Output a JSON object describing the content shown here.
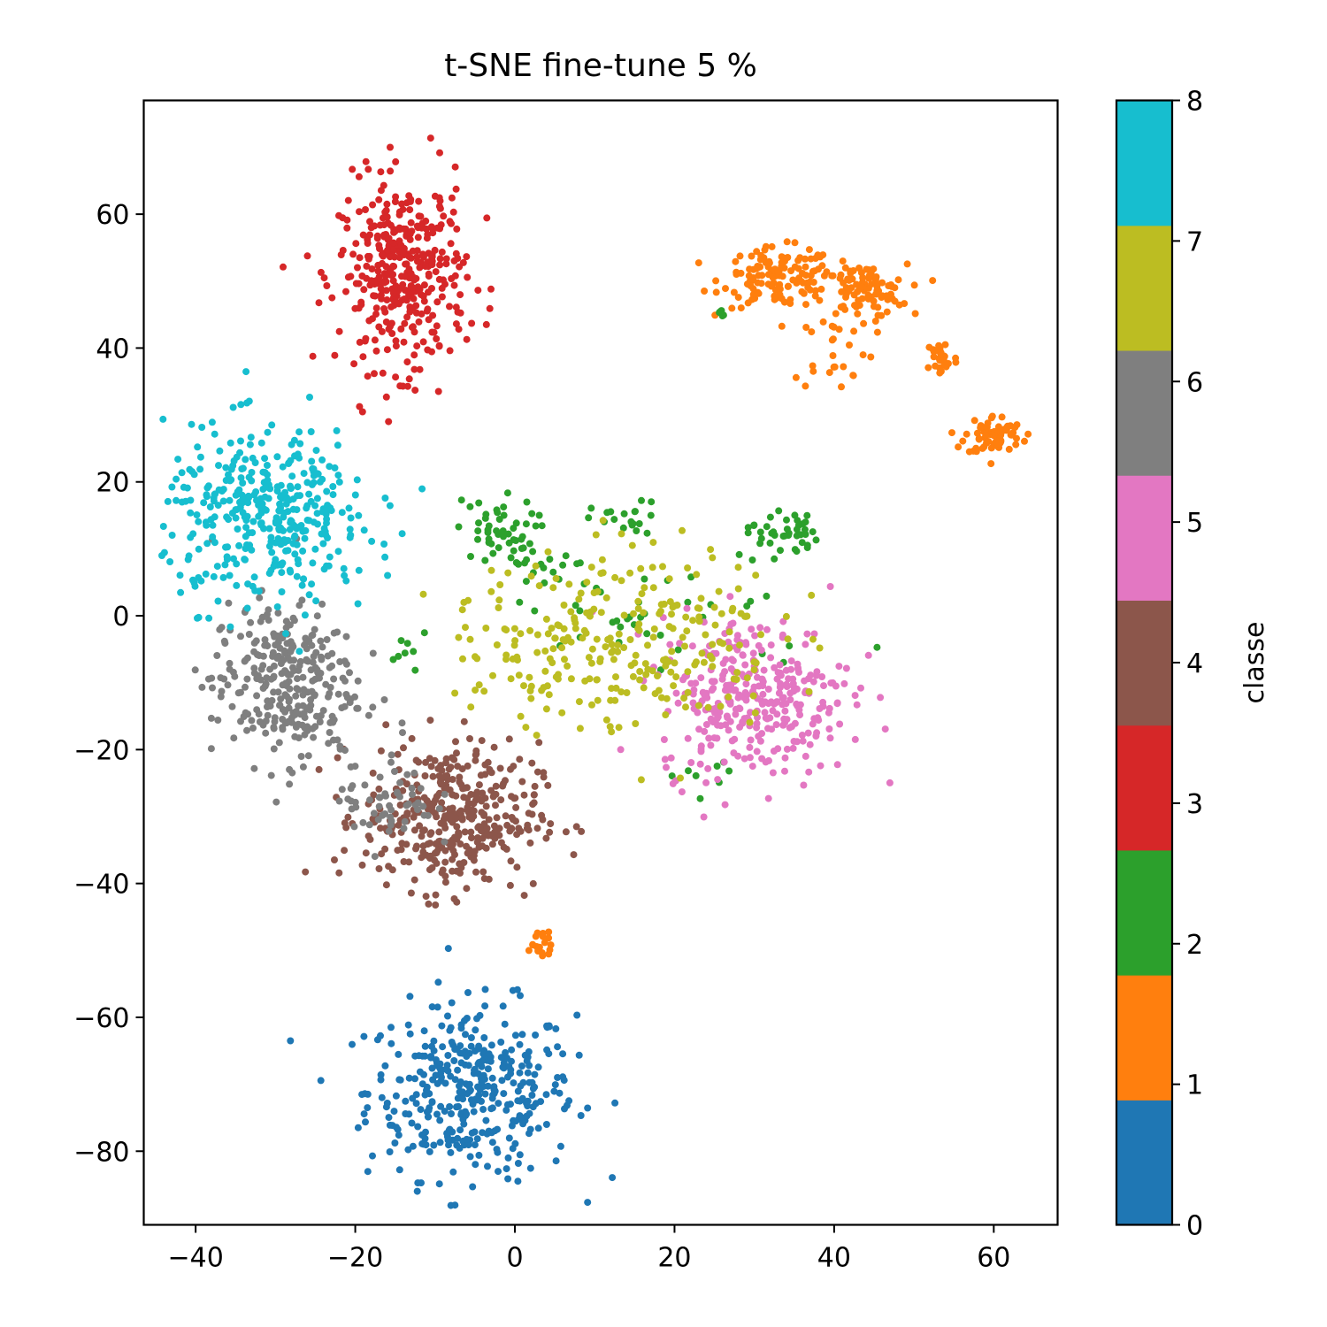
{
  "chart_data": {
    "type": "scatter",
    "title": "t-SNE fine-tune 5 %",
    "xlim": [
      -46.5,
      68.0
    ],
    "ylim": [
      -91.0,
      77.0
    ],
    "xticks": [
      -40,
      -20,
      0,
      20,
      40,
      60
    ],
    "yticks": [
      -80,
      -60,
      -40,
      -20,
      0,
      20,
      40,
      60
    ],
    "xtick_labels": [
      "−40",
      "−20",
      "0",
      "20",
      "40",
      "60"
    ],
    "ytick_labels": [
      "−80",
      "−60",
      "−40",
      "−20",
      "0",
      "20",
      "40",
      "60"
    ],
    "grid": false,
    "colorbar": {
      "label": "classe",
      "range": [
        0,
        8
      ],
      "ticks": [
        0,
        1,
        2,
        3,
        4,
        5,
        6,
        7,
        8
      ],
      "tick_labels": [
        "0",
        "1",
        "2",
        "3",
        "4",
        "5",
        "6",
        "7",
        "8"
      ],
      "colors": [
        "#1f77b4",
        "#ff7f0e",
        "#2ca02c",
        "#d62728",
        "#8c564b",
        "#e377c2",
        "#7f7f7f",
        "#bcbd22",
        "#17becf"
      ]
    },
    "clusters": [
      {
        "class": 0,
        "center": [
          -5.5,
          -71.0
        ],
        "spread": [
          6.5,
          6.5
        ],
        "n": 380
      },
      {
        "class": 1,
        "center": [
          33.0,
          50.5
        ],
        "spread": [
          3.5,
          2.2
        ],
        "n": 130
      },
      {
        "class": 1,
        "center": [
          43.5,
          48.5
        ],
        "spread": [
          2.8,
          2.0
        ],
        "n": 100
      },
      {
        "class": 1,
        "center": [
          53.5,
          38.5
        ],
        "spread": [
          1.0,
          1.5
        ],
        "n": 30
      },
      {
        "class": 1,
        "center": [
          60.0,
          27.0
        ],
        "spread": [
          1.8,
          1.5
        ],
        "n": 70
      },
      {
        "class": 1,
        "center": [
          40.0,
          40.0
        ],
        "spread": [
          2.5,
          3.0
        ],
        "n": 25
      },
      {
        "class": 1,
        "center": [
          3.0,
          -49.0
        ],
        "spread": [
          1.2,
          1.6
        ],
        "n": 18
      },
      {
        "class": 2,
        "center": [
          -2.5,
          12.5
        ],
        "spread": [
          2.5,
          2.5
        ],
        "n": 45
      },
      {
        "class": 2,
        "center": [
          33.5,
          12.5
        ],
        "spread": [
          2.2,
          1.8
        ],
        "n": 40
      },
      {
        "class": 2,
        "center": [
          14.0,
          14.0
        ],
        "spread": [
          2.2,
          1.5
        ],
        "n": 20
      },
      {
        "class": 2,
        "center": [
          3.0,
          8.0
        ],
        "spread": [
          3.0,
          2.0
        ],
        "n": 18
      },
      {
        "class": 2,
        "center": [
          18.0,
          0.0
        ],
        "spread": [
          12.0,
          5.0
        ],
        "n": 40
      },
      {
        "class": 2,
        "center": [
          -13.0,
          -5.0
        ],
        "spread": [
          1.0,
          1.2
        ],
        "n": 8
      },
      {
        "class": 2,
        "center": [
          25.5,
          45.2
        ],
        "spread": [
          0.3,
          0.3
        ],
        "n": 5
      },
      {
        "class": 2,
        "center": [
          25.0,
          -24.0
        ],
        "spread": [
          3.0,
          1.5
        ],
        "n": 8
      },
      {
        "class": 3,
        "center": [
          -14.0,
          51.0
        ],
        "spread": [
          4.0,
          7.0
        ],
        "n": 380
      },
      {
        "class": 4,
        "center": [
          -8.0,
          -30.0
        ],
        "spread": [
          5.5,
          5.5
        ],
        "n": 380
      },
      {
        "class": 5,
        "center": [
          30.0,
          -12.0
        ],
        "spread": [
          6.0,
          6.0
        ],
        "n": 330
      },
      {
        "class": 6,
        "center": [
          -29.0,
          -10.0
        ],
        "spread": [
          4.5,
          6.0
        ],
        "n": 300
      },
      {
        "class": 6,
        "center": [
          -16.0,
          -27.0
        ],
        "spread": [
          3.0,
          4.0
        ],
        "n": 60
      },
      {
        "class": 7,
        "center": [
          15.0,
          -3.0
        ],
        "spread": [
          9.0,
          7.0
        ],
        "n": 240
      },
      {
        "class": 7,
        "center": [
          0.0,
          -6.0
        ],
        "spread": [
          4.0,
          6.0
        ],
        "n": 40
      },
      {
        "class": 8,
        "center": [
          -31.0,
          15.0
        ],
        "spread": [
          6.5,
          6.5
        ],
        "n": 380
      }
    ]
  }
}
